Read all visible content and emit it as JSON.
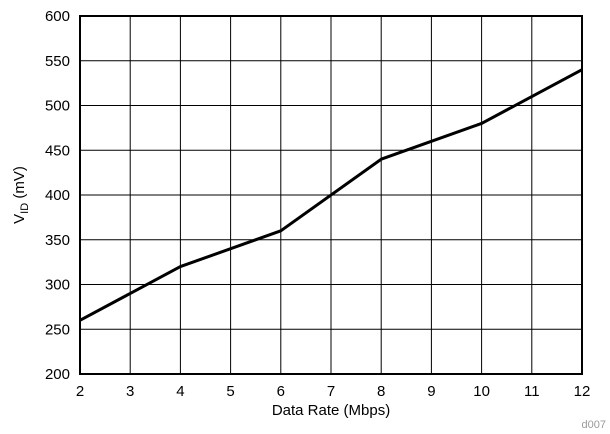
{
  "chart_data": {
    "type": "line",
    "title": "",
    "xlabel": "Data Rate (Mbps)",
    "ylabel_main": "V",
    "ylabel_sub": "ID",
    "ylabel_unit": " (mV)",
    "xlim": [
      2,
      12
    ],
    "ylim": [
      200,
      600
    ],
    "xticks": [
      2,
      3,
      4,
      5,
      6,
      7,
      8,
      9,
      10,
      11,
      12
    ],
    "yticks": [
      200,
      250,
      300,
      350,
      400,
      450,
      500,
      550,
      600
    ],
    "grid": true,
    "series": [
      {
        "x": [
          2,
          4,
          6,
          8,
          10,
          12
        ],
        "y": [
          260,
          320,
          360,
          440,
          480,
          540
        ]
      }
    ]
  },
  "footer": {
    "code": "d007"
  },
  "colors": {
    "line": "#000000",
    "grid": "#000000",
    "background": "#ffffff"
  }
}
